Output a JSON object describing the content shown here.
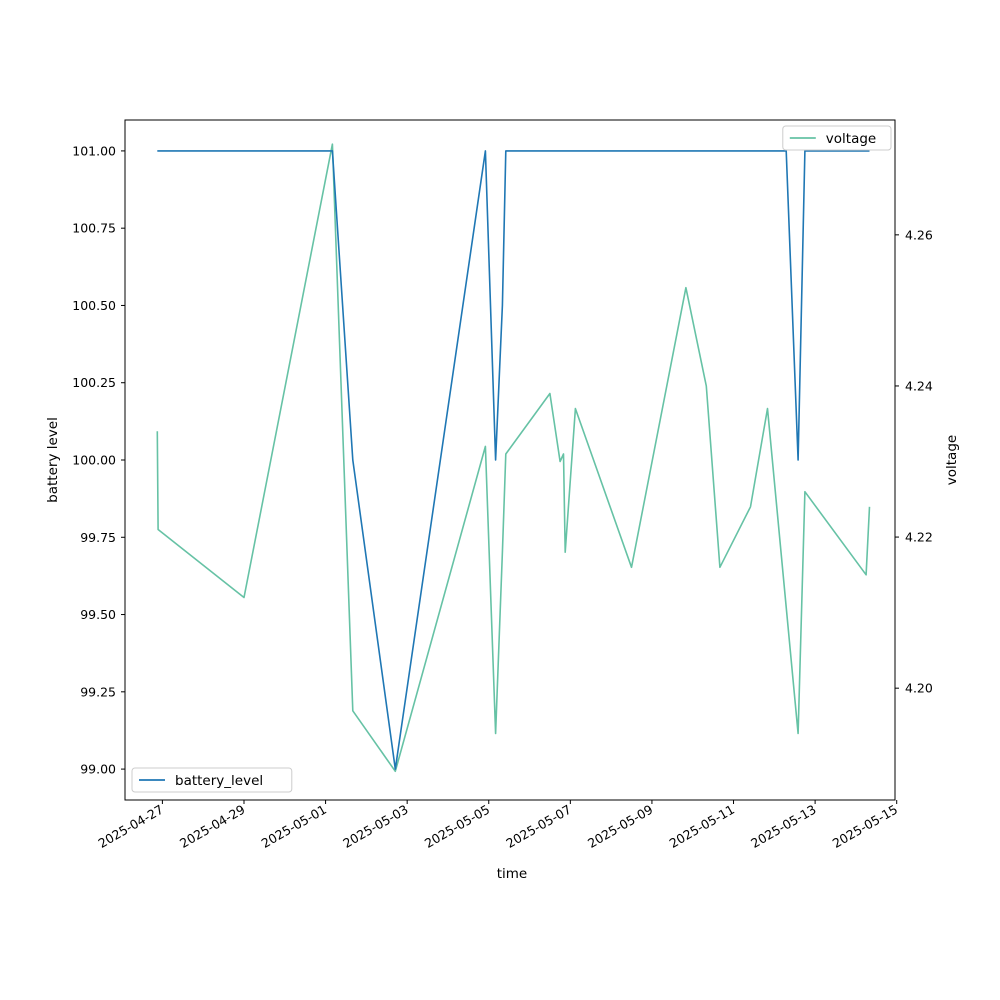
{
  "chart_data": {
    "type": "line",
    "xlabel": "time",
    "ylabel_left": "battery level",
    "ylabel_right": "voltage",
    "x_ticks": [
      "2025-04-27",
      "2025-04-29",
      "2025-05-01",
      "2025-05-03",
      "2025-05-05",
      "2025-05-07",
      "2025-05-09",
      "2025-05-11",
      "2025-05-13",
      "2025-05-15"
    ],
    "ylim_left": [
      98.9,
      101.1
    ],
    "yticks_left": [
      99.0,
      99.25,
      99.5,
      99.75,
      100.0,
      100.25,
      100.5,
      100.75,
      101.0
    ],
    "ylim_right": [
      4.1852,
      4.2752
    ],
    "yticks_right": [
      4.2,
      4.22,
      4.24,
      4.26
    ],
    "grid": false,
    "series": [
      {
        "name": "battery_level",
        "axis": "left",
        "color": "#1f77b4",
        "legend_position": "lower-left",
        "points": [
          [
            "2025-04-26T21:00",
            101
          ],
          [
            "2025-05-01T04:00",
            101
          ],
          [
            "2025-05-01T16:00",
            100
          ],
          [
            "2025-05-02T17:00",
            99
          ],
          [
            "2025-05-04T22:00",
            101
          ],
          [
            "2025-05-05T04:00",
            100
          ],
          [
            "2025-05-05T08:00",
            100.5
          ],
          [
            "2025-05-05T10:00",
            101
          ],
          [
            "2025-05-12T07:00",
            101
          ],
          [
            "2025-05-12T14:00",
            100
          ],
          [
            "2025-05-12T18:00",
            101
          ],
          [
            "2025-05-14T08:00",
            101
          ]
        ]
      },
      {
        "name": "voltage",
        "axis": "right",
        "color": "#66c2a5",
        "legend_position": "upper-right",
        "points": [
          [
            "2025-04-26T21:00",
            4.234
          ],
          [
            "2025-04-26T21:30",
            4.221
          ],
          [
            "2025-04-29T00:00",
            4.212
          ],
          [
            "2025-05-01T04:00",
            4.272
          ],
          [
            "2025-05-01T16:00",
            4.197
          ],
          [
            "2025-05-02T17:00",
            4.189
          ],
          [
            "2025-05-04T22:00",
            4.232
          ],
          [
            "2025-05-05T04:00",
            4.194
          ],
          [
            "2025-05-05T08:00",
            4.218
          ],
          [
            "2025-05-05T10:00",
            4.231
          ],
          [
            "2025-05-06T12:00",
            4.239
          ],
          [
            "2025-05-06T18:00",
            4.23
          ],
          [
            "2025-05-06T20:00",
            4.231
          ],
          [
            "2025-05-06T21:00",
            4.218
          ],
          [
            "2025-05-07T03:00",
            4.237
          ],
          [
            "2025-05-08T12:00",
            4.216
          ],
          [
            "2025-05-09T20:00",
            4.253
          ],
          [
            "2025-05-10T08:00",
            4.24
          ],
          [
            "2025-05-10T16:00",
            4.216
          ],
          [
            "2025-05-11T10:00",
            4.224
          ],
          [
            "2025-05-11T20:00",
            4.237
          ],
          [
            "2025-05-12T14:00",
            4.194
          ],
          [
            "2025-05-12T18:00",
            4.226
          ],
          [
            "2025-05-14T06:00",
            4.215
          ],
          [
            "2025-05-14T08:00",
            4.224
          ]
        ]
      }
    ]
  }
}
